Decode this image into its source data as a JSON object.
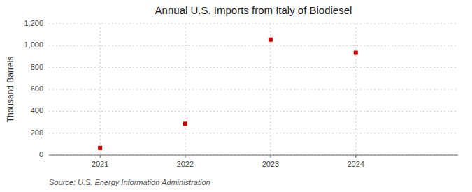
{
  "chart_data": {
    "type": "scatter",
    "title": "Annual U.S. Imports from Italy of Biodiesel",
    "ylabel": "Thousand Barrels",
    "source": "Source: U.S. Energy Information Administration",
    "x": [
      2021,
      2022,
      2023,
      2024
    ],
    "values": [
      65,
      285,
      1055,
      935
    ],
    "color": "#cc0000",
    "marker": "square",
    "xlim": [
      2020.4,
      2025.2
    ],
    "xticks": [
      2021,
      2022,
      2023,
      2024
    ],
    "ylim": [
      0,
      1200
    ],
    "yticks": [
      0,
      200,
      400,
      600,
      800,
      {
        "value": 1000,
        "label": "1,000"
      },
      {
        "value": 1200,
        "label": "1,200"
      }
    ],
    "grid": true
  }
}
